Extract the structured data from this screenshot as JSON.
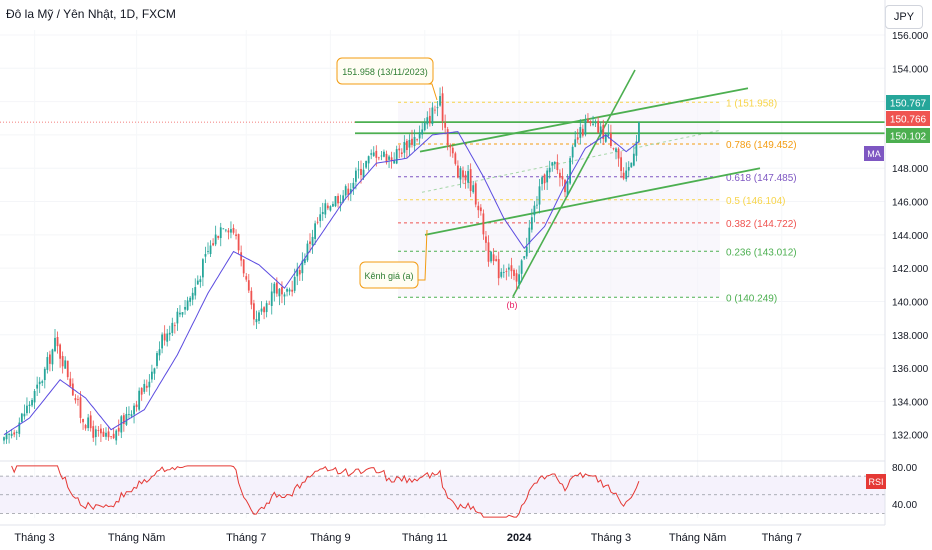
{
  "header": {
    "title": "Đô la Mỹ / Yên Nhật, 1D, FXCM",
    "currency_button": "JPY"
  },
  "chart_data": {
    "type": "candlestick",
    "symbol": "Đô la Mỹ / Yên Nhật, 1D, FXCM",
    "currency": "JPY",
    "xaxis_labels": [
      "Tháng 3",
      "Tháng Năm",
      "Tháng 7",
      "Tháng 9",
      "Tháng 11",
      "2024",
      "Tháng 3",
      "Tháng Năm",
      "Tháng 7"
    ],
    "price_axis": {
      "ticks": [
        132,
        134,
        136,
        138,
        140,
        142,
        144,
        146,
        148,
        150,
        152,
        154,
        156
      ],
      "tick_labels": [
        "132.000",
        "134.000",
        "136.000",
        "138.000",
        "140.000",
        "142.000",
        "144.000",
        "146.000",
        "148.000",
        "150.000",
        "152.000",
        "154.000",
        "156.000"
      ],
      "range": [
        130.6,
        156.3
      ]
    },
    "price_badges": [
      {
        "value": "150.767",
        "color": "#26a69a"
      },
      {
        "value": "150.766",
        "color": "#ef5350"
      },
      {
        "value": "150.102",
        "color": "#4caf50"
      }
    ],
    "ma_badge": {
      "label": "MA",
      "color": "#7e57c2"
    },
    "rsi": {
      "label": "RSI",
      "ticks": [
        "80.00",
        "40.00"
      ],
      "upper": 70,
      "middle": 50,
      "lower": 30,
      "range": [
        25,
        82
      ],
      "color": "#e53935"
    },
    "close_path": [
      {
        "t": 0,
        "c": 131.5
      },
      {
        "t": 6,
        "c": 132.8
      },
      {
        "t": 14,
        "c": 135.0
      },
      {
        "t": 20,
        "c": 137.5
      },
      {
        "t": 24,
        "c": 136.2
      },
      {
        "t": 30,
        "c": 133.2
      },
      {
        "t": 36,
        "c": 132.0
      },
      {
        "t": 42,
        "c": 131.6
      },
      {
        "t": 48,
        "c": 133.2
      },
      {
        "t": 56,
        "c": 135.0
      },
      {
        "t": 62,
        "c": 137.8
      },
      {
        "t": 68,
        "c": 139.2
      },
      {
        "t": 74,
        "c": 140.5
      },
      {
        "t": 80,
        "c": 143.0
      },
      {
        "t": 86,
        "c": 144.8
      },
      {
        "t": 90,
        "c": 144.3
      },
      {
        "t": 94,
        "c": 142.0
      },
      {
        "t": 98,
        "c": 138.5
      },
      {
        "t": 102,
        "c": 139.5
      },
      {
        "t": 106,
        "c": 141.0
      },
      {
        "t": 110,
        "c": 140.0
      },
      {
        "t": 116,
        "c": 142.0
      },
      {
        "t": 122,
        "c": 144.5
      },
      {
        "t": 128,
        "c": 146.0
      },
      {
        "t": 134,
        "c": 146.6
      },
      {
        "t": 140,
        "c": 148.0
      },
      {
        "t": 146,
        "c": 149.0
      },
      {
        "t": 152,
        "c": 148.6
      },
      {
        "t": 158,
        "c": 149.5
      },
      {
        "t": 164,
        "c": 150.2
      },
      {
        "t": 168,
        "c": 151.4
      },
      {
        "t": 171,
        "c": 151.9
      },
      {
        "t": 174,
        "c": 149.8
      },
      {
        "t": 178,
        "c": 147.6
      },
      {
        "t": 182,
        "c": 147.5
      },
      {
        "t": 186,
        "c": 145.8
      },
      {
        "t": 190,
        "c": 142.8
      },
      {
        "t": 194,
        "c": 141.8
      },
      {
        "t": 198,
        "c": 142.3
      },
      {
        "t": 201,
        "c": 140.8
      },
      {
        "t": 204,
        "c": 143.0
      },
      {
        "t": 208,
        "c": 145.6
      },
      {
        "t": 212,
        "c": 147.5
      },
      {
        "t": 216,
        "c": 148.2
      },
      {
        "t": 220,
        "c": 147.0
      },
      {
        "t": 224,
        "c": 149.5
      },
      {
        "t": 228,
        "c": 150.6
      },
      {
        "t": 232,
        "c": 150.4
      },
      {
        "t": 236,
        "c": 150.0
      },
      {
        "t": 240,
        "c": 149.4
      },
      {
        "t": 243,
        "c": 147.0
      },
      {
        "t": 246,
        "c": 148.4
      },
      {
        "t": 249,
        "c": 150.8
      }
    ],
    "ma_path": [
      {
        "t": 0,
        "c": 132.0
      },
      {
        "t": 10,
        "c": 133.0
      },
      {
        "t": 22,
        "c": 135.3
      },
      {
        "t": 32,
        "c": 134.2
      },
      {
        "t": 42,
        "c": 132.3
      },
      {
        "t": 55,
        "c": 133.5
      },
      {
        "t": 68,
        "c": 136.8
      },
      {
        "t": 80,
        "c": 140.5
      },
      {
        "t": 90,
        "c": 143.0
      },
      {
        "t": 100,
        "c": 142.2
      },
      {
        "t": 110,
        "c": 140.8
      },
      {
        "t": 122,
        "c": 143.5
      },
      {
        "t": 134,
        "c": 146.2
      },
      {
        "t": 146,
        "c": 148.3
      },
      {
        "t": 158,
        "c": 148.6
      },
      {
        "t": 168,
        "c": 150.0
      },
      {
        "t": 178,
        "c": 150.2
      },
      {
        "t": 188,
        "c": 147.5
      },
      {
        "t": 196,
        "c": 145.0
      },
      {
        "t": 204,
        "c": 143.2
      },
      {
        "t": 212,
        "c": 144.5
      },
      {
        "t": 220,
        "c": 147.0
      },
      {
        "t": 228,
        "c": 149.2
      },
      {
        "t": 236,
        "c": 150.0
      },
      {
        "t": 244,
        "c": 149.0
      },
      {
        "t": 249,
        "c": 149.6
      }
    ],
    "fibonacci": [
      {
        "ratio": "1",
        "label": "1 (151.958)",
        "price": 151.958,
        "color": "#f7d44a"
      },
      {
        "ratio": "0.786",
        "label": "0.786 (149.452)",
        "price": 149.452,
        "color": "#f39c12"
      },
      {
        "ratio": "0.618",
        "label": "0.618 (147.485)",
        "price": 147.485,
        "color": "#7e57c2"
      },
      {
        "ratio": "0.5",
        "label": "0.5 (146.104)",
        "price": 146.104,
        "color": "#f7d44a"
      },
      {
        "ratio": "0.382",
        "label": "0.382 (144.722)",
        "price": 144.722,
        "color": "#ef5350"
      },
      {
        "ratio": "0.236",
        "label": "0.236 (143.012)",
        "price": 143.012,
        "color": "#4caf50"
      },
      {
        "ratio": "0",
        "label": "0 (140.249)",
        "price": 140.249,
        "color": "#4caf50"
      }
    ],
    "horizontal_levels": [
      {
        "price": 150.77,
        "color": "#4caf50"
      },
      {
        "price": 150.1,
        "color": "#4caf50"
      }
    ],
    "annotations": [
      {
        "text": "151.958 (13/11/2023)",
        "color": "#f39c12"
      },
      {
        "text": "Kênh giá (a)",
        "color": "#f39c12"
      },
      {
        "text": "(b)",
        "color": "#e91e63"
      }
    ]
  }
}
